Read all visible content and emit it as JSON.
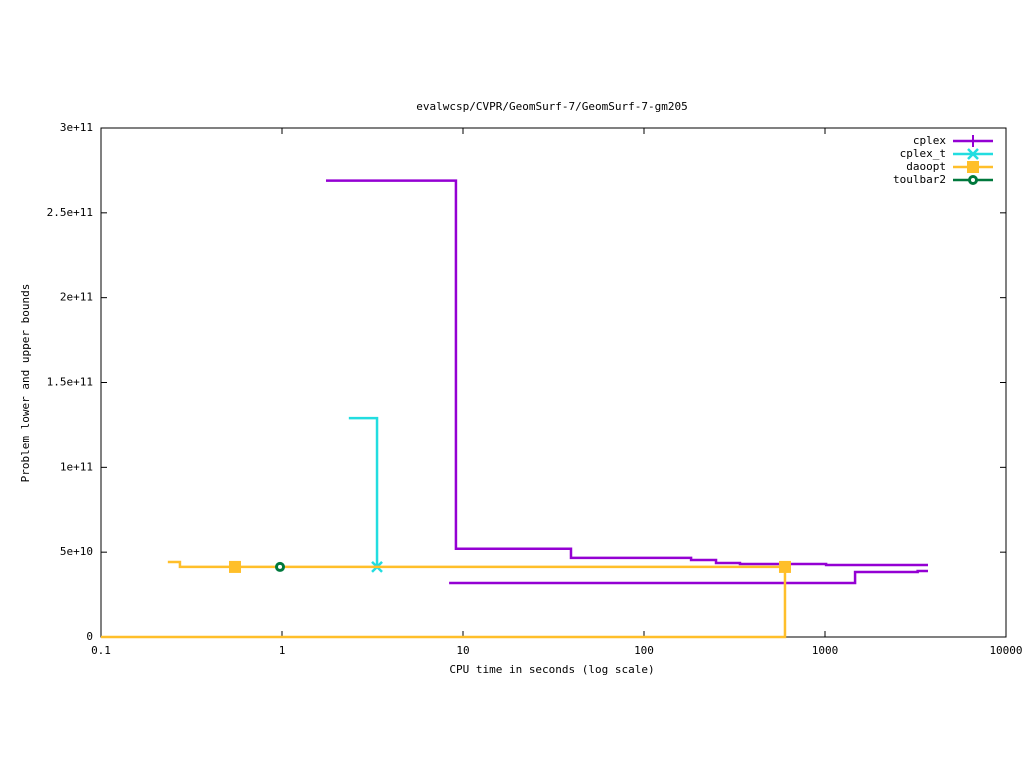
{
  "chart_data": {
    "type": "line",
    "title": "evalwcsp/CVPR/GeomSurf-7/GeomSurf-7-gm205",
    "x_label": "CPU time in seconds (log scale)",
    "y_label": "Problem lower and upper bounds",
    "x_log": true,
    "xlim": [
      0.1,
      10000
    ],
    "xticks": [
      0.1,
      1,
      10,
      100,
      1000,
      10000
    ],
    "ylim": [
      0,
      300000000000
    ],
    "yticks": [
      0,
      {
        "value": 50000000000,
        "label": "5e+10"
      },
      {
        "value": 100000000000,
        "label": "1e+11"
      },
      {
        "value": 150000000000,
        "label": "1.5e+11"
      },
      {
        "value": 200000000000,
        "label": "2e+11"
      },
      {
        "value": 250000000000,
        "label": "2.5e+11"
      },
      {
        "value": 300000000000,
        "label": "3e+11"
      }
    ],
    "legend": "top-right",
    "series": [
      {
        "name": "cplex",
        "color": "#9400d3",
        "marker": "plus",
        "lines": [
          {
            "x": [
              1.75,
              9.14,
              9.14,
              39.5,
              39.5,
              182,
              182,
              250,
              250,
              339,
              339,
              1014,
              1014,
              3707
            ],
            "values": [
              269000000000,
              269000000000,
              52000000000,
              52000000000,
              46600000000,
              46600000000,
              45400000000,
              45400000000,
              43600000000,
              43600000000,
              43000000000,
              43000000000,
              42400000000,
              42400000000
            ]
          },
          {
            "x": [
              8.38,
              1466,
              1466,
              3250,
              3250,
              3707
            ],
            "values": [
              31800000000,
              31800000000,
              38300000000,
              38300000000,
              38900000000,
              38900000000
            ]
          }
        ]
      },
      {
        "name": "cplex_t",
        "color": "#22dde0",
        "marker": "cross",
        "lines": [
          {
            "x": [
              2.34,
              3.35,
              3.35
            ],
            "values": [
              129000000000,
              129000000000,
              41300000000
            ]
          }
        ],
        "markers": {
          "x": [
            3.35
          ],
          "values": [
            41300000000
          ]
        }
      },
      {
        "name": "daoopt",
        "color": "#ffbf2a",
        "marker": "square",
        "lines": [
          {
            "x": [
              0.234,
              0.273,
              0.273,
              601
            ],
            "values": [
              44200000000,
              44200000000,
              41300000000,
              41300000000
            ]
          },
          {
            "x": [
              0.1,
              601,
              601
            ],
            "values": [
              0,
              0,
              41300000000
            ]
          }
        ],
        "markers": {
          "x": [
            0.55,
            601
          ],
          "values": [
            41300000000,
            41300000000
          ]
        }
      },
      {
        "name": "toulbar2",
        "color": "#00783c",
        "marker": "circle",
        "markers": {
          "x": [
            0.975
          ],
          "values": [
            41300000000
          ]
        }
      }
    ]
  }
}
